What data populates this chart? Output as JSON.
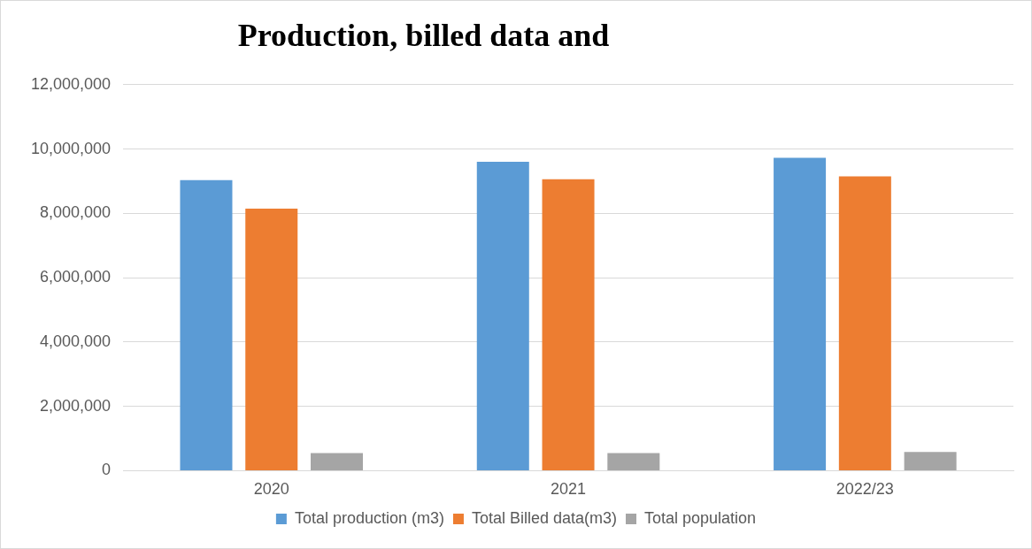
{
  "chart_data": {
    "type": "bar",
    "title": "Production, billed data and",
    "categories": [
      "2020",
      "2021",
      "2022/23"
    ],
    "series": [
      {
        "name": "Total production (m3)",
        "color": "#5b9bd5",
        "values": [
          9030000,
          9600000,
          9730000
        ]
      },
      {
        "name": "Total Billed data(m3)",
        "color": "#ed7d31",
        "values": [
          8150000,
          9060000,
          9150000
        ]
      },
      {
        "name": "Total population",
        "color": "#a5a5a5",
        "values": [
          550000,
          550000,
          580000
        ]
      }
    ],
    "ylim": [
      0,
      12000000
    ],
    "yticks": [
      0,
      {
        "value": 2000000,
        "label": "2,000,000"
      },
      {
        "value": 4000000,
        "label": "4,000,000"
      },
      {
        "value": 6000000,
        "label": "6,000,000"
      },
      {
        "value": 8000000,
        "label": "8,000,000"
      },
      {
        "value": 10000000,
        "label": "10,000,000"
      },
      {
        "value": 12000000,
        "label": "12,000,000"
      }
    ],
    "grid": "y",
    "legend": "bottom"
  }
}
